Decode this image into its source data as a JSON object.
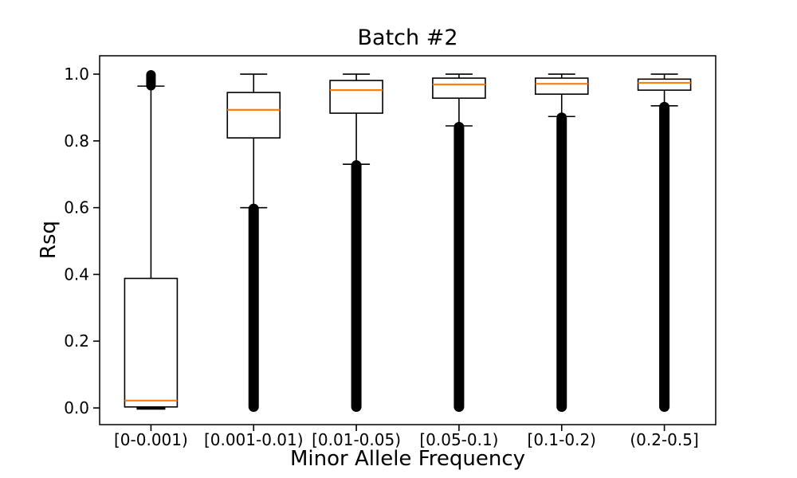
{
  "chart_data": {
    "type": "boxplot",
    "title": "Batch #2",
    "xlabel": "Minor Allele Frequency",
    "ylabel": "Rsq",
    "categories": [
      "[0-0.001)",
      "[0.001-0.01)",
      "[0.01-0.05)",
      "[0.05-0.1)",
      "[0.1-0.2)",
      "(0.2-0.5]"
    ],
    "ylim": [
      -0.05,
      1.055
    ],
    "yticks": [
      {
        "label": "0.0",
        "value": 0.0
      },
      {
        "label": "0.2",
        "value": 0.2
      },
      {
        "label": "0.4",
        "value": 0.4
      },
      {
        "label": "0.6",
        "value": 0.6
      },
      {
        "label": "0.8",
        "value": 0.8
      },
      {
        "label": "1.0",
        "value": 1.0
      }
    ],
    "grid": false,
    "legend": null,
    "colors": {
      "median": "#ff7f0e",
      "box_edge": "#000000",
      "whisker": "#000000",
      "flier": "#000000",
      "background": "#ffffff"
    },
    "boxes": [
      {
        "category": "[0-0.001)",
        "q1": 0.003,
        "median": 0.022,
        "q3": 0.388,
        "whisker_low": 0.0,
        "whisker_high": 0.964,
        "whisker_low_cap_thick": true,
        "fliers_high": {
          "from": 0.963,
          "to": 1.0
        },
        "fliers_low": null
      },
      {
        "category": "[0.001-0.01)",
        "q1": 0.809,
        "median": 0.893,
        "q3": 0.945,
        "whisker_low": 0.6,
        "whisker_high": 1.0,
        "whisker_low_cap_thick": false,
        "fliers_high": null,
        "fliers_low": {
          "from": 0.0,
          "to": 0.6
        }
      },
      {
        "category": "[0.01-0.05)",
        "q1": 0.883,
        "median": 0.952,
        "q3": 0.981,
        "whisker_low": 0.73,
        "whisker_high": 1.0,
        "whisker_low_cap_thick": false,
        "fliers_high": null,
        "fliers_low": {
          "from": 0.0,
          "to": 0.73
        }
      },
      {
        "category": "[0.05-0.1)",
        "q1": 0.928,
        "median": 0.969,
        "q3": 0.988,
        "whisker_low": 0.845,
        "whisker_high": 1.0,
        "whisker_low_cap_thick": false,
        "fliers_high": null,
        "fliers_low": {
          "from": 0.0,
          "to": 0.845
        }
      },
      {
        "category": "[0.1-0.2)",
        "q1": 0.94,
        "median": 0.971,
        "q3": 0.988,
        "whisker_low": 0.873,
        "whisker_high": 1.0,
        "whisker_low_cap_thick": false,
        "fliers_high": null,
        "fliers_low": {
          "from": 0.0,
          "to": 0.873
        }
      },
      {
        "category": "(0.2-0.5]",
        "q1": 0.952,
        "median": 0.974,
        "q3": 0.985,
        "whisker_low": 0.905,
        "whisker_high": 1.0,
        "whisker_low_cap_thick": false,
        "fliers_high": null,
        "fliers_low": {
          "from": 0.0,
          "to": 0.905
        }
      }
    ]
  }
}
